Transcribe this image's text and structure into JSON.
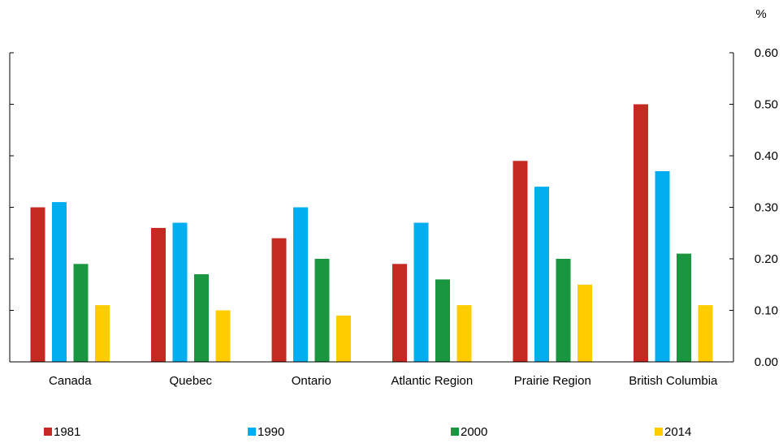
{
  "chart_data": {
    "type": "bar",
    "title": "",
    "xlabel": "",
    "ylabel": "",
    "unit": "%",
    "categories": [
      "Canada",
      "Quebec",
      "Ontario",
      "Atlantic Region",
      "Prairie Region",
      "British Columbia"
    ],
    "series": [
      {
        "name": "1981",
        "color": "#c42a21",
        "values": [
          0.3,
          0.26,
          0.24,
          0.19,
          0.39,
          0.5
        ]
      },
      {
        "name": "1990",
        "color": "#00aeef",
        "values": [
          0.31,
          0.27,
          0.3,
          0.27,
          0.34,
          0.37
        ]
      },
      {
        "name": "2000",
        "color": "#1a9641",
        "values": [
          0.19,
          0.17,
          0.2,
          0.16,
          0.2,
          0.21
        ]
      },
      {
        "name": "2014",
        "color": "#ffcc00",
        "values": [
          0.11,
          0.1,
          0.09,
          0.11,
          0.15,
          0.11
        ]
      }
    ],
    "ylim": [
      0,
      0.6
    ],
    "yticks": [
      "0.00",
      "0.10",
      "0.20",
      "0.30",
      "0.40",
      "0.50",
      "0.60"
    ],
    "grid": false,
    "legend_position": "bottom"
  }
}
